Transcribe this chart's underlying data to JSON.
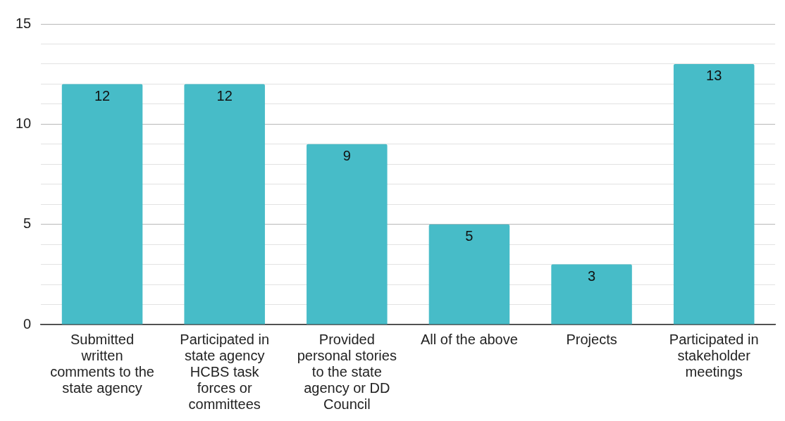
{
  "chart_data": {
    "type": "bar",
    "categories": [
      "Submitted written comments to the state agency",
      "Participated in state agency HCBS task forces or committees",
      "Provided personal stories to the state agency or DD Council",
      "All of the above",
      "Projects",
      "Participated in stakeholder meetings"
    ],
    "values": [
      12,
      12,
      9,
      5,
      3,
      13
    ],
    "color": "#47bcc8",
    "ylim": [
      0,
      15
    ],
    "yticks": [
      0,
      {
        "value": 1,
        "label": null
      },
      {
        "value": 2,
        "label": null
      },
      {
        "value": 3,
        "label": null
      },
      {
        "value": 4,
        "label": null
      },
      5,
      {
        "value": 6,
        "label": null
      },
      {
        "value": 7,
        "label": null
      },
      {
        "value": 8,
        "label": null
      },
      {
        "value": 9,
        "label": null
      },
      10,
      {
        "value": 11,
        "label": null
      },
      {
        "value": 12,
        "label": null
      },
      {
        "value": 13,
        "label": null
      },
      {
        "value": 14,
        "label": null
      },
      15
    ],
    "grid": "y",
    "data_labels": true
  }
}
